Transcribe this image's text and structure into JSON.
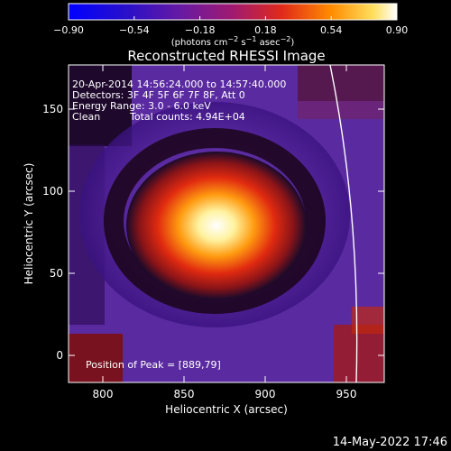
{
  "chart_data": {
    "type": "heatmap",
    "title": "Reconstructed RHESSI Image",
    "xlabel": "Heliocentric X (arcsec)",
    "ylabel": "Heliocentric Y (arcsec)",
    "xlim": [
      780,
      970
    ],
    "ylim": [
      -17,
      190
    ],
    "x_ticks": [
      800,
      850,
      900,
      950
    ],
    "y_ticks": [
      0,
      50,
      100,
      150
    ],
    "colorbar": {
      "range": [
        -0.9,
        0.9
      ],
      "ticks": [
        "−0.90",
        "−0.54",
        "−0.18",
        "0.18",
        "0.54",
        "0.90"
      ],
      "units_label": "(photons cm^-2 s^-1 asec^-2)",
      "colors": [
        "#0000ff",
        "#3a00b0",
        "#5a2aa8",
        "#a02470",
        "#e0301a",
        "#ff8c00",
        "#ffe060",
        "#ffffff"
      ]
    },
    "annotations": [
      "20-Apr-2014 14:56:24.000 to 14:57:40.000",
      "Detectors: 3F 4F 5F 6F 7F 8F, Att 0",
      "Energy Range: 3.0 - 6.0 keV",
      "Clean",
      "Total counts: 4.94E+04"
    ],
    "peak_label": "Position of Peak = [889,79]",
    "peak": {
      "x": 889,
      "y": 79
    },
    "limb_arc": true,
    "timestamp": "14-May-2022 17:46"
  }
}
